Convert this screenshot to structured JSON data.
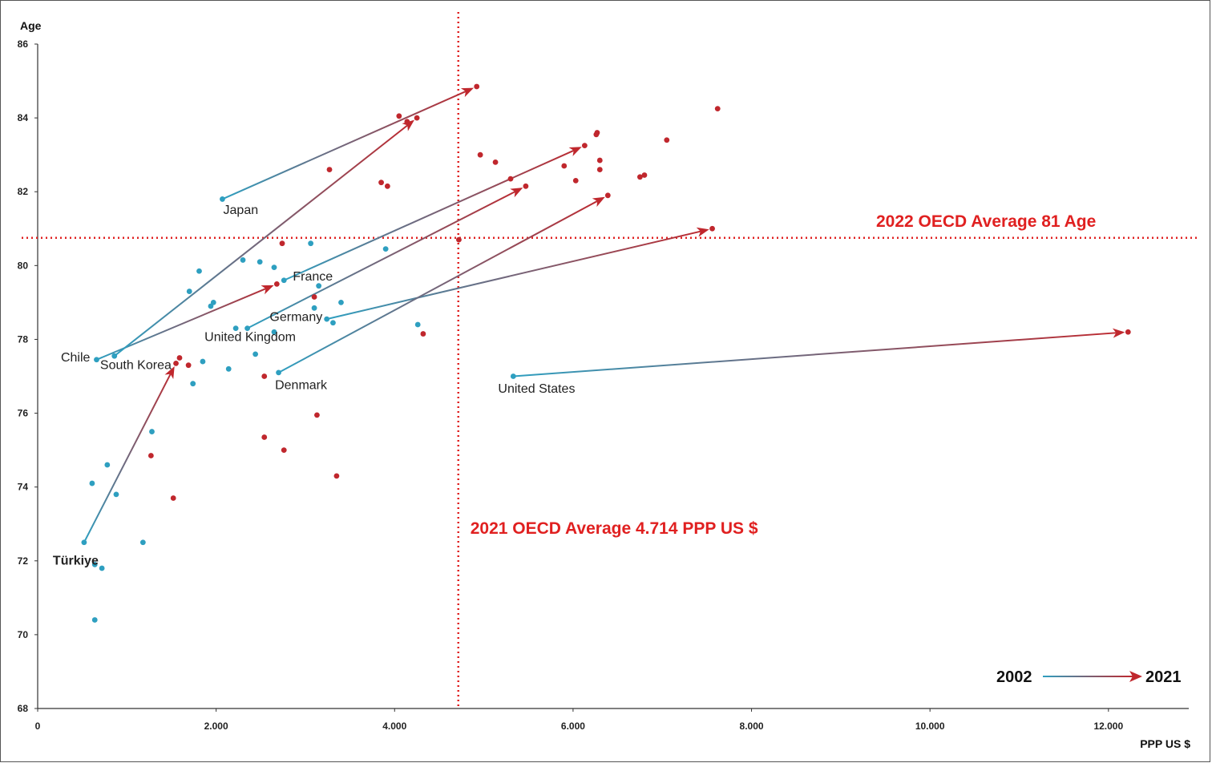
{
  "chart_data": {
    "type": "scatter",
    "title": "",
    "xlabel": "PPP US $",
    "ylabel": "Age",
    "xlim": [
      0,
      12900
    ],
    "ylim": [
      68,
      86
    ],
    "x_ticks": [
      0,
      2000,
      4000,
      6000,
      8000,
      10000,
      12000
    ],
    "x_tick_labels": [
      "0",
      "2.000",
      "4.000",
      "6.000",
      "8.000",
      "10.000",
      "12.000"
    ],
    "y_ticks": [
      68,
      70,
      72,
      74,
      76,
      78,
      80,
      82,
      84,
      86
    ],
    "y_tick_labels": [
      "68",
      "70",
      "72",
      "74",
      "76",
      "78",
      "80",
      "82",
      "84",
      "86"
    ],
    "grid": false,
    "colors": {
      "year2002": "#2e9fc0",
      "year2021": "#c0272d",
      "reference": "#e02020",
      "axis": "#333333"
    },
    "series": [
      {
        "name": "2002",
        "points": [
          [
            520,
            72.5
          ],
          [
            640,
            71.9
          ],
          [
            720,
            71.8
          ],
          [
            640,
            70.4
          ],
          [
            610,
            74.1
          ],
          [
            780,
            74.6
          ],
          [
            880,
            73.8
          ],
          [
            1180,
            72.5
          ],
          [
            1280,
            75.5
          ],
          [
            1740,
            76.8
          ],
          [
            1850,
            77.4
          ],
          [
            2140,
            77.2
          ],
          [
            2440,
            77.6
          ],
          [
            2700,
            77.1
          ],
          [
            660,
            77.45
          ],
          [
            860,
            77.55
          ],
          [
            1700,
            79.3
          ],
          [
            1810,
            79.85
          ],
          [
            1940,
            78.9
          ],
          [
            1970,
            79.0
          ],
          [
            2070,
            81.8
          ],
          [
            2220,
            78.3
          ],
          [
            2350,
            78.3
          ],
          [
            2300,
            80.15
          ],
          [
            2490,
            80.1
          ],
          [
            2650,
            79.95
          ],
          [
            2650,
            78.2
          ],
          [
            2760,
            79.6
          ],
          [
            3060,
            80.6
          ],
          [
            3100,
            78.85
          ],
          [
            3150,
            79.45
          ],
          [
            3240,
            78.55
          ],
          [
            3310,
            78.45
          ],
          [
            3400,
            79.0
          ],
          [
            3900,
            80.45
          ],
          [
            4260,
            78.4
          ],
          [
            5330,
            77.0
          ]
        ]
      },
      {
        "name": "2021",
        "points": [
          [
            1520,
            73.7
          ],
          [
            1590,
            77.5
          ],
          [
            1690,
            77.3
          ],
          [
            1270,
            74.85
          ],
          [
            1550,
            77.35
          ],
          [
            2540,
            77.0
          ],
          [
            2540,
            75.35
          ],
          [
            2760,
            75.0
          ],
          [
            3130,
            75.95
          ],
          [
            3350,
            74.3
          ],
          [
            2680,
            79.5
          ],
          [
            2740,
            80.6
          ],
          [
            3100,
            79.15
          ],
          [
            3270,
            82.6
          ],
          [
            3850,
            82.25
          ],
          [
            3920,
            82.15
          ],
          [
            4050,
            84.05
          ],
          [
            4140,
            83.9
          ],
          [
            4250,
            84.0
          ],
          [
            4320,
            78.15
          ],
          [
            4720,
            80.7
          ],
          [
            4920,
            84.85
          ],
          [
            4960,
            83.0
          ],
          [
            5130,
            82.8
          ],
          [
            5300,
            82.35
          ],
          [
            5470,
            82.15
          ],
          [
            5900,
            82.7
          ],
          [
            6030,
            82.3
          ],
          [
            6130,
            83.25
          ],
          [
            6260,
            83.55
          ],
          [
            6270,
            83.6
          ],
          [
            6300,
            82.85
          ],
          [
            6300,
            82.6
          ],
          [
            6390,
            81.9
          ],
          [
            6750,
            82.4
          ],
          [
            6800,
            82.45
          ],
          [
            7050,
            83.4
          ],
          [
            7560,
            81.0
          ],
          [
            7620,
            84.25
          ],
          [
            12220,
            78.2
          ]
        ]
      }
    ],
    "arrows": [
      {
        "country": "Türkiye",
        "from": [
          520,
          72.5
        ],
        "to": [
          1550,
          77.35
        ]
      },
      {
        "country": "Chile",
        "from": [
          660,
          77.45
        ],
        "to": [
          2680,
          79.5
        ]
      },
      {
        "country": "South Korea",
        "from": [
          860,
          77.55
        ],
        "to": [
          4250,
          84.0
        ]
      },
      {
        "country": "Japan",
        "from": [
          2070,
          81.8
        ],
        "to": [
          4920,
          84.85
        ]
      },
      {
        "country": "France",
        "from": [
          2760,
          79.6
        ],
        "to": [
          6130,
          83.25
        ]
      },
      {
        "country": "United Kingdom",
        "from": [
          2350,
          78.3
        ],
        "to": [
          5470,
          82.15
        ]
      },
      {
        "country": "Germany",
        "from": [
          3240,
          78.55
        ],
        "to": [
          7560,
          81.0
        ]
      },
      {
        "country": "Denmark",
        "from": [
          2700,
          77.1
        ],
        "to": [
          6390,
          81.9
        ]
      },
      {
        "country": "United States",
        "from": [
          5330,
          77.0
        ],
        "to": [
          12220,
          78.2
        ]
      }
    ],
    "labels": [
      {
        "text": "Japan",
        "x": 2080,
        "y": 81.4,
        "color": "#222222"
      },
      {
        "text": "France",
        "x": 2860,
        "y": 79.6,
        "color": "#222222"
      },
      {
        "text": "Germany",
        "x": 2600,
        "y": 78.5,
        "color": "#222222"
      },
      {
        "text": "United Kingdom",
        "x": 1870,
        "y": 77.95,
        "color": "#222222"
      },
      {
        "text": "Chile",
        "x": 260,
        "y": 77.4,
        "color": "#222222"
      },
      {
        "text": "South Korea",
        "x": 700,
        "y": 77.2,
        "color": "#222222"
      },
      {
        "text": "Denmark",
        "x": 2660,
        "y": 76.65,
        "color": "#222222"
      },
      {
        "text": "United States",
        "x": 5160,
        "y": 76.55,
        "color": "#222222"
      },
      {
        "text": "Türkiye",
        "x": 170,
        "y": 71.9,
        "color": "#e02020"
      }
    ],
    "reference_lines": [
      {
        "axis": "y",
        "value": 80.75,
        "label": "2022 OECD Average 81 Age"
      },
      {
        "axis": "x",
        "value": 4714,
        "label": "2021 OECD Average 4.714 PPP US $"
      }
    ],
    "legend": {
      "from": "2002",
      "to": "2021",
      "position": "bottom-right"
    }
  }
}
